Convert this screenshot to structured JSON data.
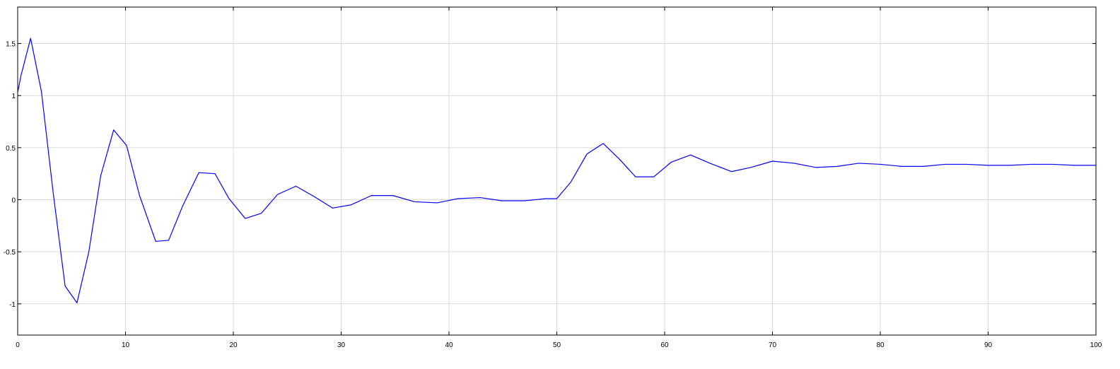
{
  "chart_data": {
    "type": "line",
    "title": "",
    "xlabel": "",
    "ylabel": "",
    "xlim": [
      0,
      100
    ],
    "ylim": [
      -1.3,
      1.85
    ],
    "grid": true,
    "x_ticks": [
      0,
      10,
      20,
      30,
      40,
      50,
      60,
      70,
      80,
      90,
      100
    ],
    "x_tick_labels": [
      "0",
      "10",
      "20",
      "30",
      "40",
      "50",
      "60",
      "70",
      "80",
      "90",
      "100"
    ],
    "y_ticks": [
      -1,
      -0.5,
      0,
      0.5,
      1,
      1.5
    ],
    "y_tick_labels": [
      "-1",
      "-0.5",
      "0",
      "0.5",
      "1",
      "1.5"
    ],
    "colors": {
      "line": "#0000ff",
      "grid": "#d9d9d9",
      "axes": "#000000"
    },
    "series": [
      {
        "x": [
          0,
          0.3,
          1.2,
          2.2,
          3.3,
          4.4,
          5.5,
          6.6,
          7.7,
          8.9,
          10.1,
          11.3,
          12.8,
          14.0,
          15.3,
          16.8,
          18.3,
          19.6,
          21.1,
          22.6,
          24.1,
          25.8,
          27.5,
          29.2,
          30.9,
          32.8,
          34.8,
          36.8,
          38.9,
          40.8,
          42.9,
          44.9,
          47.0,
          49.0,
          50.0,
          51.3,
          52.8,
          54.3,
          55.8,
          57.3,
          59.0,
          60.6,
          62.4,
          64.2,
          66.2,
          68.0,
          70.0,
          72.0,
          74.0,
          76.0,
          78.0,
          80.0,
          82.0,
          84.0,
          86.0,
          88.0,
          90.0,
          92.0,
          94.0,
          96.0,
          98.0,
          100.0
        ],
        "y": [
          1.03,
          1.19,
          1.55,
          1.04,
          0.06,
          -0.83,
          -0.99,
          -0.5,
          0.23,
          0.67,
          0.52,
          0.04,
          -0.4,
          -0.39,
          -0.06,
          0.26,
          0.25,
          0.01,
          -0.18,
          -0.13,
          0.05,
          0.13,
          0.03,
          -0.08,
          -0.05,
          0.04,
          0.04,
          -0.02,
          -0.03,
          0.01,
          0.02,
          -0.01,
          -0.01,
          0.01,
          0.01,
          0.17,
          0.44,
          0.54,
          0.39,
          0.22,
          0.22,
          0.36,
          0.43,
          0.35,
          0.27,
          0.31,
          0.37,
          0.35,
          0.31,
          0.32,
          0.35,
          0.34,
          0.32,
          0.32,
          0.34,
          0.34,
          0.33,
          0.33,
          0.34,
          0.34,
          0.33,
          0.33
        ]
      }
    ]
  }
}
